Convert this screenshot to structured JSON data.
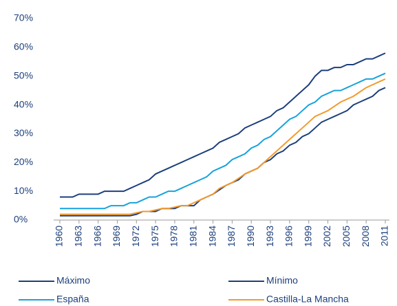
{
  "chart_data": {
    "type": "line",
    "x": [
      1960,
      1961,
      1962,
      1963,
      1964,
      1965,
      1966,
      1967,
      1968,
      1969,
      1970,
      1971,
      1972,
      1973,
      1974,
      1975,
      1976,
      1977,
      1978,
      1979,
      1980,
      1981,
      1982,
      1983,
      1984,
      1985,
      1986,
      1987,
      1988,
      1989,
      1990,
      1991,
      1992,
      1993,
      1994,
      1995,
      1996,
      1997,
      1998,
      1999,
      2000,
      2001,
      2002,
      2003,
      2004,
      2005,
      2006,
      2007,
      2008,
      2009,
      2010,
      2011
    ],
    "xlim": [
      1960,
      2011
    ],
    "xticks": [
      1960,
      1963,
      1966,
      1969,
      1972,
      1975,
      1978,
      1981,
      1984,
      1987,
      1990,
      1993,
      1996,
      1999,
      2002,
      2005,
      2008,
      2011
    ],
    "ylim": [
      0,
      70
    ],
    "yticks": [
      {
        "value": 0,
        "label": "0%"
      },
      {
        "value": 10,
        "label": "10%"
      },
      {
        "value": 20,
        "label": "20%"
      },
      {
        "value": 30,
        "label": "30%"
      },
      {
        "value": 40,
        "label": "40%"
      },
      {
        "value": 50,
        "label": "50%"
      },
      {
        "value": 60,
        "label": "60%"
      },
      {
        "value": 70,
        "label": "70%"
      }
    ],
    "grid": false,
    "series": [
      {
        "name": "Máximo",
        "color": "#1c3f7c",
        "values": [
          8,
          8,
          8,
          9,
          9,
          9,
          9,
          10,
          10,
          10,
          10,
          11,
          12,
          13,
          14,
          16,
          17,
          18,
          19,
          20,
          21,
          22,
          23,
          24,
          25,
          27,
          28,
          29,
          30,
          32,
          33,
          34,
          35,
          36,
          38,
          39,
          41,
          43,
          45,
          47,
          50,
          52,
          52,
          53,
          53,
          54,
          54,
          55,
          56,
          56,
          57,
          58
        ]
      },
      {
        "name": "Mínimo",
        "color": "#1c3f7c",
        "values": [
          1.5,
          1.5,
          1.5,
          1.5,
          1.5,
          1.5,
          1.5,
          1.5,
          1.5,
          1.5,
          1.5,
          1.5,
          2,
          3,
          3,
          3,
          4,
          4,
          4,
          5,
          5,
          5,
          7,
          8,
          9,
          10.5,
          12,
          13,
          14,
          16,
          17,
          18,
          20,
          21,
          23,
          24,
          26,
          27,
          29,
          30,
          32,
          34,
          35,
          36,
          37,
          38,
          40,
          41,
          42,
          43,
          45,
          46
        ]
      },
      {
        "name": "España",
        "color": "#17a2dc",
        "values": [
          4,
          4,
          4,
          4,
          4,
          4,
          4,
          4,
          5,
          5,
          5,
          6,
          6,
          7,
          8,
          8,
          9,
          10,
          10,
          11,
          12,
          13,
          14,
          15,
          17,
          18,
          19,
          21,
          22,
          23,
          25,
          26,
          28,
          29,
          31,
          33,
          35,
          36,
          38,
          40,
          41,
          43,
          44,
          45,
          45,
          46,
          47,
          48,
          49,
          49,
          50,
          51
        ]
      },
      {
        "name": "Castilla-La Mancha",
        "color": "#f39a2b",
        "values": [
          2,
          2,
          2,
          2,
          2,
          2,
          2,
          2,
          2,
          2,
          2,
          2,
          2.5,
          3,
          3,
          3.5,
          4,
          4,
          4.5,
          5,
          5,
          6,
          7,
          8,
          9,
          11,
          12,
          13,
          14.5,
          16,
          17,
          18,
          20,
          22,
          24,
          26,
          28,
          30,
          32,
          34,
          36,
          37,
          38,
          39.5,
          41,
          42,
          43,
          44.5,
          46,
          47,
          48,
          49
        ]
      }
    ]
  }
}
